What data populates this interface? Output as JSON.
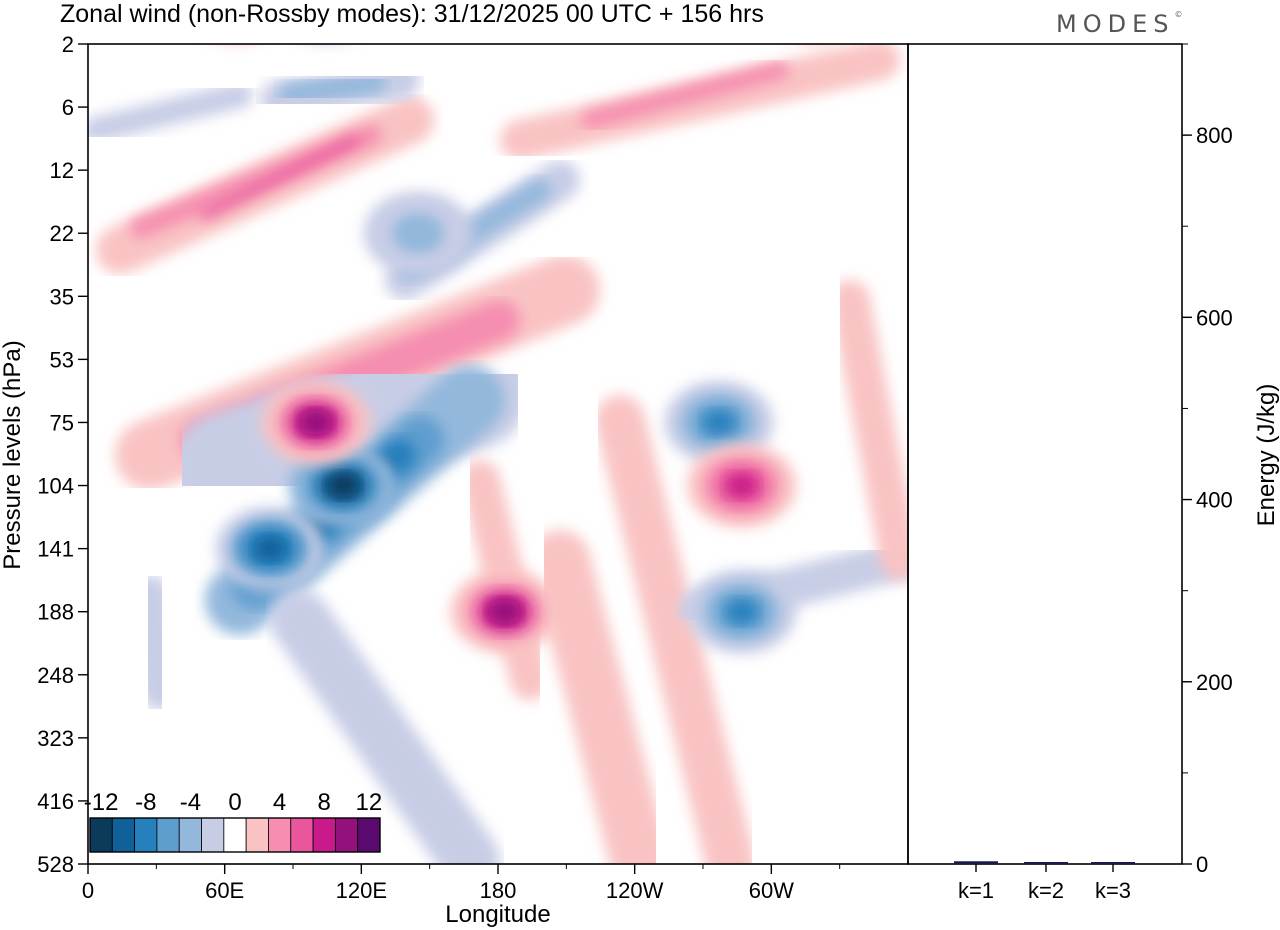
{
  "title": "Zonal wind (non-Rossby modes):  31/12/2025  00 UTC  + 156 hrs",
  "brand": "MODES",
  "brand_mark": "©",
  "chart_data": [
    {
      "type": "heatmap",
      "title": "Zonal wind (non-Rossby modes):  31/12/2025  00 UTC  + 156 hrs",
      "xlabel": "Longitude",
      "ylabel": "Pressure levels (hPa)",
      "x_ticks": [
        "0",
        "60E",
        "120E",
        "180",
        "120W",
        "60W"
      ],
      "y_ticks": [
        "2",
        "6",
        "12",
        "22",
        "35",
        "53",
        "75",
        "104",
        "141",
        "188",
        "248",
        "323",
        "416",
        "528"
      ],
      "colorbar": {
        "tick_labels": [
          "-12",
          "-8",
          "-4",
          "0",
          "4",
          "8",
          "12"
        ],
        "levels": [
          -14,
          -12,
          -10,
          -8,
          -6,
          -4,
          -2,
          2,
          4,
          6,
          8,
          10,
          12,
          14
        ],
        "colors": [
          "#0b3a5b",
          "#10619a",
          "#2680bd",
          "#5e9ecf",
          "#93b8dc",
          "#c8cde6",
          "#ffffff",
          "#f9c3c3",
          "#f58eb0",
          "#e9569c",
          "#c81a8a",
          "#92117b",
          "#5a0a6e"
        ]
      },
      "features": [
        {
          "lon": 112,
          "level": 104,
          "value": -14
        },
        {
          "lon": 80,
          "level": 141,
          "value": -12
        },
        {
          "lon": 100,
          "level": 75,
          "value": 10
        },
        {
          "lon": 65,
          "level": 16,
          "value": 10
        },
        {
          "lon": 183,
          "level": 188,
          "value": 10
        },
        {
          "lon": 277,
          "level": 75,
          "value": -10
        },
        {
          "lon": 287,
          "level": 188,
          "value": -10
        },
        {
          "lon": 287,
          "level": 104,
          "value": 8
        },
        {
          "lon": 320,
          "level": 4,
          "value": 10
        },
        {
          "lon": 145,
          "level": 22,
          "value": -6
        },
        {
          "lon": 105,
          "level": 4,
          "value": -8
        }
      ]
    },
    {
      "type": "bar",
      "ylabel": "Energy (J/kg)",
      "categories": [
        "k=1",
        "k=2",
        "k=3"
      ],
      "values": [
        3,
        2,
        2
      ],
      "ylim": [
        0,
        900
      ],
      "y_ticks": [
        "0",
        "200",
        "400",
        "600",
        "800"
      ]
    }
  ]
}
